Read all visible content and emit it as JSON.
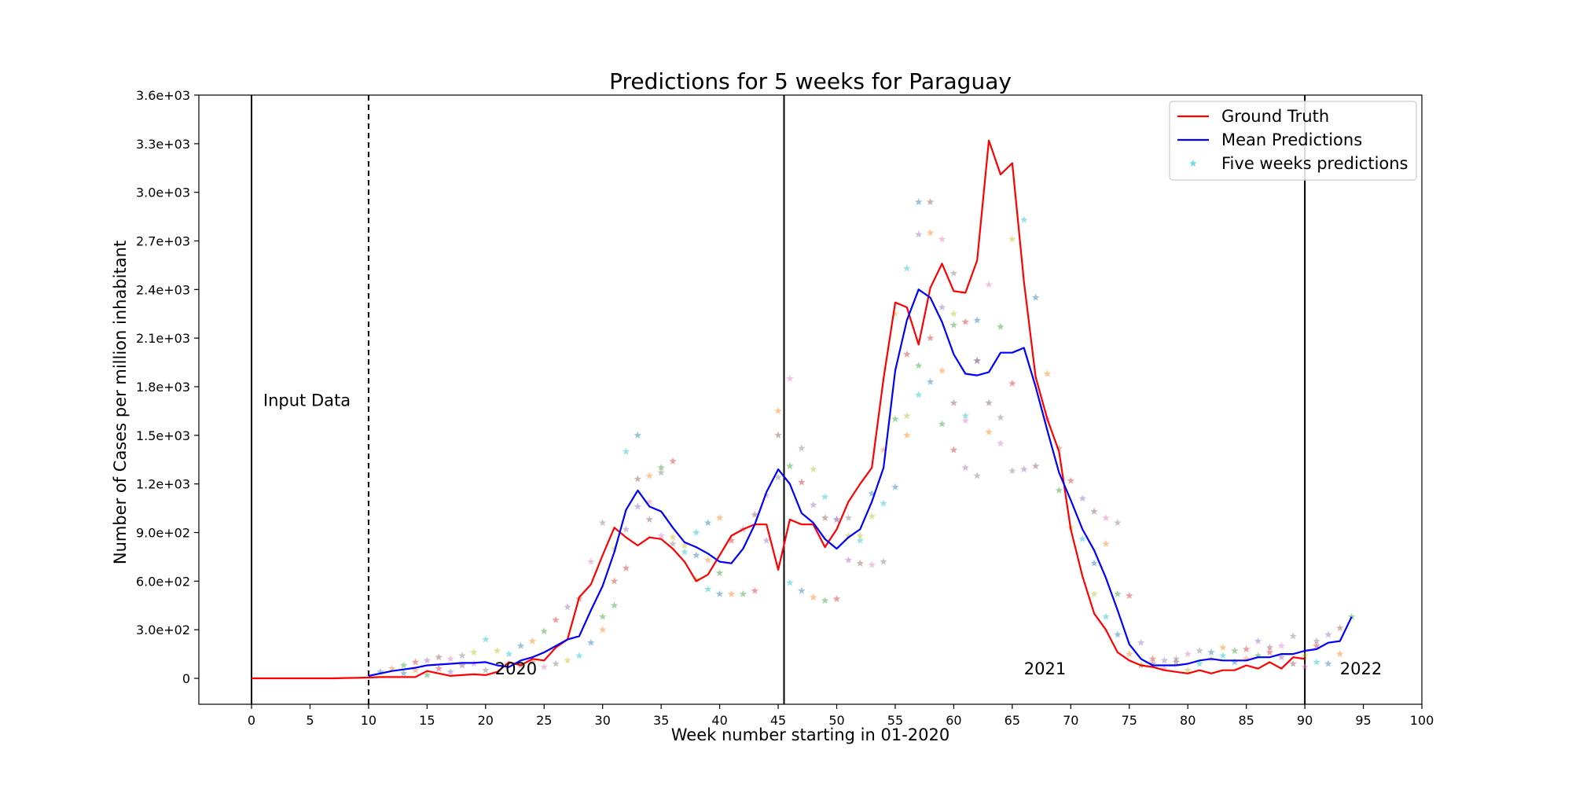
{
  "chart_data": {
    "type": "line",
    "title": "Predictions for 5 weeks for Paraguay",
    "xlabel": "Week number starting in 01-2020",
    "ylabel": "Number of Cases per million inhabitant",
    "xlim": [
      -4.5,
      100
    ],
    "ylim": [
      -160,
      3600
    ],
    "x_ticks": [
      0,
      5,
      10,
      15,
      20,
      25,
      30,
      35,
      40,
      45,
      50,
      55,
      60,
      65,
      70,
      75,
      80,
      85,
      90,
      95,
      100
    ],
    "y_ticks": [
      0,
      300,
      600,
      900,
      1200,
      1500,
      1800,
      2100,
      2400,
      2700,
      3000,
      3300,
      3600
    ],
    "y_tick_labels": [
      "0",
      "3.0e+02",
      "6.0e+02",
      "9.0e+02",
      "1.2e+03",
      "1.5e+03",
      "1.8e+03",
      "2.1e+03",
      "2.4e+03",
      "2.7e+03",
      "3.0e+03",
      "3.3e+03",
      "3.6e+03"
    ],
    "grid": false,
    "legend_position": "top-right",
    "vertical_lines": [
      {
        "x": 0,
        "style": "solid"
      },
      {
        "x": 10,
        "style": "dashed"
      },
      {
        "x": 45.5,
        "style": "solid"
      },
      {
        "x": 90,
        "style": "solid"
      }
    ],
    "annotations": [
      {
        "text": "Input Data",
        "x": 1,
        "y": 1680
      },
      {
        "text": "2020",
        "x": 20.8,
        "y": 25
      },
      {
        "text": "2021",
        "x": 66,
        "y": 25
      },
      {
        "text": "2022",
        "x": 93,
        "y": 25
      }
    ],
    "series": [
      {
        "name": "Ground Truth",
        "color": "#ff0000",
        "style": "line",
        "x": [
          0,
          1,
          2,
          3,
          4,
          5,
          6,
          7,
          8,
          9,
          10,
          11,
          12,
          13,
          14,
          15,
          16,
          17,
          18,
          19,
          20,
          21,
          22,
          23,
          24,
          25,
          26,
          27,
          28,
          29,
          30,
          31,
          32,
          33,
          34,
          35,
          36,
          37,
          38,
          39,
          40,
          41,
          42,
          43,
          44,
          45,
          46,
          47,
          48,
          49,
          50,
          51,
          52,
          53,
          54,
          55,
          56,
          57,
          58,
          59,
          60,
          61,
          62,
          63,
          64,
          65,
          66,
          67,
          68,
          69,
          70,
          71,
          72,
          73,
          74,
          75,
          76,
          77,
          78,
          79,
          80,
          81,
          82,
          83,
          84,
          85,
          86,
          87,
          88,
          89,
          90
        ],
        "y": [
          0,
          0,
          0,
          0,
          0,
          0,
          0,
          0,
          2,
          3,
          5,
          8,
          8,
          8,
          8,
          45,
          30,
          15,
          20,
          25,
          20,
          40,
          100,
          80,
          120,
          110,
          190,
          240,
          500,
          580,
          760,
          930,
          870,
          820,
          870,
          860,
          800,
          720,
          600,
          640,
          760,
          880,
          920,
          950,
          950,
          670,
          980,
          950,
          950,
          810,
          920,
          1090,
          1200,
          1300,
          1850,
          2320,
          2290,
          2060,
          2410,
          2560,
          2390,
          2380,
          2580,
          3320,
          3110,
          3180,
          2450,
          1860,
          1600,
          1400,
          920,
          630,
          400,
          300,
          160,
          110,
          80,
          70,
          50,
          40,
          30,
          50,
          30,
          50,
          50,
          80,
          60,
          100,
          60,
          130,
          120
        ]
      },
      {
        "name": "Mean Predictions",
        "color": "#0000ff",
        "style": "line",
        "x": [
          10,
          11,
          12,
          13,
          14,
          15,
          16,
          17,
          18,
          19,
          20,
          21,
          22,
          23,
          24,
          25,
          26,
          27,
          28,
          29,
          30,
          31,
          32,
          33,
          34,
          35,
          36,
          37,
          38,
          39,
          40,
          41,
          42,
          43,
          44,
          45,
          46,
          47,
          48,
          49,
          50,
          51,
          52,
          53,
          54,
          55,
          56,
          57,
          58,
          59,
          60,
          61,
          62,
          63,
          64,
          65,
          66,
          67,
          68,
          69,
          70,
          71,
          72,
          73,
          74,
          75,
          76,
          77,
          78,
          79,
          80,
          81,
          82,
          83,
          84,
          85,
          86,
          87,
          88,
          89,
          90,
          91,
          92,
          93,
          94
        ],
        "y": [
          15,
          30,
          45,
          55,
          65,
          80,
          85,
          90,
          95,
          95,
          100,
          80,
          70,
          110,
          130,
          160,
          200,
          240,
          260,
          420,
          570,
          780,
          1040,
          1160,
          1060,
          1030,
          930,
          840,
          810,
          770,
          720,
          710,
          800,
          950,
          1150,
          1290,
          1200,
          1020,
          960,
          860,
          800,
          870,
          920,
          1090,
          1300,
          1900,
          2210,
          2400,
          2350,
          2200,
          2000,
          1880,
          1870,
          1890,
          2010,
          2010,
          2040,
          1800,
          1530,
          1270,
          1100,
          920,
          790,
          620,
          420,
          210,
          120,
          80,
          80,
          80,
          90,
          110,
          120,
          110,
          110,
          110,
          130,
          130,
          150,
          150,
          170,
          180,
          220,
          230,
          380
        ]
      },
      {
        "name": "Five weeks predictions",
        "style": "markers",
        "marker": "star",
        "colors": [
          "#1f77b4",
          "#ff7f0e",
          "#2ca02c",
          "#d62728",
          "#9467bd",
          "#8c564b",
          "#e377c2",
          "#7f7f7f",
          "#bcbd22",
          "#17becf"
        ],
        "points": [
          [
            11,
            40
          ],
          [
            12,
            60
          ],
          [
            13,
            80
          ],
          [
            14,
            100
          ],
          [
            15,
            110
          ],
          [
            16,
            130
          ],
          [
            17,
            120
          ],
          [
            18,
            140
          ],
          [
            19,
            160
          ],
          [
            20,
            240
          ],
          [
            13,
            30
          ],
          [
            14,
            50
          ],
          [
            15,
            20
          ],
          [
            16,
            60
          ],
          [
            17,
            40
          ],
          [
            18,
            80
          ],
          [
            19,
            90
          ],
          [
            20,
            50
          ],
          [
            21,
            170
          ],
          [
            22,
            150
          ],
          [
            23,
            200
          ],
          [
            24,
            230
          ],
          [
            25,
            290
          ],
          [
            26,
            360
          ],
          [
            27,
            440
          ],
          [
            28,
            490
          ],
          [
            29,
            720
          ],
          [
            30,
            960
          ],
          [
            31,
            800
          ],
          [
            32,
            1400
          ],
          [
            33,
            1500
          ],
          [
            34,
            1250
          ],
          [
            35,
            1300
          ],
          [
            36,
            1340
          ],
          [
            23,
            80
          ],
          [
            24,
            100
          ],
          [
            25,
            70
          ],
          [
            26,
            90
          ],
          [
            27,
            110
          ],
          [
            28,
            140
          ],
          [
            29,
            220
          ],
          [
            30,
            300
          ],
          [
            31,
            450
          ],
          [
            32,
            680
          ],
          [
            33,
            1060
          ],
          [
            34,
            980
          ],
          [
            35,
            880
          ],
          [
            36,
            830
          ],
          [
            37,
            820
          ],
          [
            38,
            900
          ],
          [
            39,
            960
          ],
          [
            40,
            990
          ],
          [
            30,
            380
          ],
          [
            31,
            600
          ],
          [
            32,
            920
          ],
          [
            33,
            1230
          ],
          [
            34,
            1090
          ],
          [
            35,
            1270
          ],
          [
            36,
            870
          ],
          [
            37,
            780
          ],
          [
            38,
            760
          ],
          [
            39,
            730
          ],
          [
            40,
            650
          ],
          [
            41,
            850
          ],
          [
            42,
            920
          ],
          [
            43,
            1010
          ],
          [
            44,
            1130
          ],
          [
            45,
            1240
          ],
          [
            38,
            610
          ],
          [
            39,
            550
          ],
          [
            40,
            520
          ],
          [
            41,
            520
          ],
          [
            42,
            520
          ],
          [
            43,
            540
          ],
          [
            44,
            850
          ],
          [
            45,
            1500
          ],
          [
            46,
            1850
          ],
          [
            47,
            1420
          ],
          [
            48,
            1290
          ],
          [
            49,
            1120
          ],
          [
            50,
            980
          ],
          [
            45,
            1650
          ],
          [
            46,
            1310
          ],
          [
            47,
            1210
          ],
          [
            48,
            1070
          ],
          [
            49,
            990
          ],
          [
            50,
            980
          ],
          [
            51,
            990
          ],
          [
            52,
            880
          ],
          [
            46,
            590
          ],
          [
            47,
            540
          ],
          [
            48,
            500
          ],
          [
            49,
            480
          ],
          [
            50,
            490
          ],
          [
            51,
            730
          ],
          [
            52,
            710
          ],
          [
            53,
            700
          ],
          [
            54,
            720
          ],
          [
            51,
            880
          ],
          [
            52,
            850
          ],
          [
            53,
            1140
          ],
          [
            54,
            1410
          ],
          [
            55,
            1600
          ],
          [
            56,
            2000
          ],
          [
            57,
            2740
          ],
          [
            58,
            2940
          ],
          [
            59,
            2710
          ],
          [
            60,
            2500
          ],
          [
            53,
            1000
          ],
          [
            54,
            1080
          ],
          [
            55,
            1180
          ],
          [
            56,
            1500
          ],
          [
            57,
            1930
          ],
          [
            58,
            2100
          ],
          [
            59,
            2290
          ],
          [
            60,
            1700
          ],
          [
            61,
            1590
          ],
          [
            62,
            1250
          ],
          [
            55,
            2250
          ],
          [
            56,
            2530
          ],
          [
            57,
            2940
          ],
          [
            58,
            2750
          ],
          [
            59,
            1570
          ],
          [
            60,
            1410
          ],
          [
            61,
            1300
          ],
          [
            62,
            1960
          ],
          [
            63,
            2430
          ],
          [
            64,
            1610
          ],
          [
            56,
            1620
          ],
          [
            57,
            1750
          ],
          [
            58,
            1830
          ],
          [
            59,
            1900
          ],
          [
            60,
            2180
          ],
          [
            61,
            2200
          ],
          [
            62,
            1960
          ],
          [
            63,
            1700
          ],
          [
            64,
            1450
          ],
          [
            65,
            1280
          ],
          [
            60,
            2250
          ],
          [
            61,
            1620
          ],
          [
            62,
            2210
          ],
          [
            63,
            1520
          ],
          [
            64,
            2170
          ],
          [
            65,
            1820
          ],
          [
            66,
            1290
          ],
          [
            67,
            1310
          ],
          [
            68,
            1600
          ],
          [
            69,
            1420
          ],
          [
            65,
            2710
          ],
          [
            66,
            2830
          ],
          [
            67,
            2350
          ],
          [
            68,
            1880
          ],
          [
            69,
            1160
          ],
          [
            70,
            1220
          ],
          [
            71,
            1110
          ],
          [
            72,
            1030
          ],
          [
            73,
            990
          ],
          [
            74,
            960
          ],
          [
            70,
            930
          ],
          [
            71,
            860
          ],
          [
            72,
            710
          ],
          [
            73,
            830
          ],
          [
            74,
            520
          ],
          [
            75,
            510
          ],
          [
            76,
            220
          ],
          [
            77,
            90
          ],
          [
            78,
            60
          ],
          [
            79,
            120
          ],
          [
            72,
            520
          ],
          [
            73,
            380
          ],
          [
            74,
            270
          ],
          [
            75,
            150
          ],
          [
            76,
            80
          ],
          [
            77,
            120
          ],
          [
            78,
            110
          ],
          [
            79,
            100
          ],
          [
            80,
            150
          ],
          [
            81,
            170
          ],
          [
            80,
            50
          ],
          [
            81,
            90
          ],
          [
            82,
            160
          ],
          [
            83,
            190
          ],
          [
            84,
            170
          ],
          [
            85,
            180
          ],
          [
            86,
            230
          ],
          [
            87,
            190
          ],
          [
            88,
            200
          ],
          [
            89,
            260
          ],
          [
            82,
            120
          ],
          [
            83,
            140
          ],
          [
            84,
            100
          ],
          [
            85,
            120
          ],
          [
            86,
            140
          ],
          [
            87,
            160
          ],
          [
            88,
            130
          ],
          [
            89,
            90
          ],
          [
            90,
            70
          ],
          [
            91,
            230
          ],
          [
            90,
            140
          ],
          [
            91,
            100
          ],
          [
            92,
            90
          ],
          [
            93,
            150
          ],
          [
            94,
            380
          ],
          [
            91,
            200
          ],
          [
            92,
            270
          ],
          [
            93,
            310
          ]
        ]
      }
    ]
  }
}
